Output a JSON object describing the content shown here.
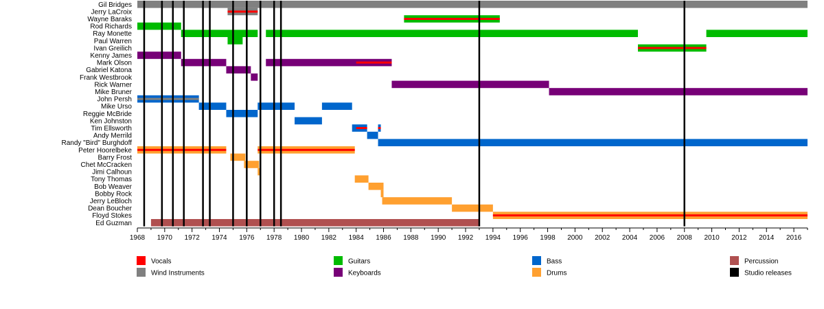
{
  "chart_data": {
    "type": "timeline",
    "xlim": [
      1968,
      2017
    ],
    "x_ticks": [
      "1968",
      "1970",
      "1972",
      "1974",
      "1976",
      "1978",
      "1980",
      "1982",
      "1984",
      "1986",
      "1988",
      "1990",
      "1992",
      "1994",
      "1996",
      "1998",
      "2000",
      "2002",
      "2004",
      "2006",
      "2008",
      "2010",
      "2012",
      "2014",
      "2016"
    ],
    "colors": {
      "Vocals": "#ff0000",
      "Wind Instruments": "#808080",
      "Guitars": "#00bb00",
      "Keyboards": "#770077",
      "Bass": "#0066cc",
      "Drums": "#ffa030",
      "Percussion": "#b05050",
      "Studio releases": "#000000"
    },
    "legend": [
      {
        "label": "Vocals",
        "key": "Vocals"
      },
      {
        "label": "Guitars",
        "key": "Guitars"
      },
      {
        "label": "Bass",
        "key": "Bass"
      },
      {
        "label": "Percussion",
        "key": "Percussion"
      },
      {
        "label": "Wind Instruments",
        "key": "Wind Instruments"
      },
      {
        "label": "Keyboards",
        "key": "Keyboards"
      },
      {
        "label": "Drums",
        "key": "Drums"
      },
      {
        "label": "Studio releases",
        "key": "Studio releases"
      }
    ],
    "studio_releases": [
      1968.5,
      1969.8,
      1970.6,
      1971.4,
      1972.8,
      1973.3,
      1975.0,
      1976.0,
      1977.0,
      1978.0,
      1978.5,
      1993.0,
      2008.0
    ],
    "members": [
      {
        "name": "Gil Bridges",
        "bars": [
          {
            "start": 1968,
            "end": 2017,
            "role": "Wind Instruments"
          }
        ],
        "vocals": []
      },
      {
        "name": "Jerry LaCroix",
        "bars": [
          {
            "start": 1974.6,
            "end": 1976.8,
            "role": "Wind Instruments"
          }
        ],
        "vocals": [
          {
            "start": 1974.6,
            "end": 1976.8
          }
        ]
      },
      {
        "name": "Wayne Baraks",
        "bars": [
          {
            "start": 1987.5,
            "end": 1994.5,
            "role": "Guitars"
          }
        ],
        "vocals": [
          {
            "start": 1987.5,
            "end": 1994.5
          }
        ]
      },
      {
        "name": "Rod Richards",
        "bars": [
          {
            "start": 1968,
            "end": 1971.2,
            "role": "Guitars"
          }
        ],
        "vocals": []
      },
      {
        "name": "Ray Monette",
        "bars": [
          {
            "start": 1971.2,
            "end": 1976.8,
            "role": "Guitars"
          },
          {
            "start": 1977.4,
            "end": 2004.6,
            "role": "Guitars"
          },
          {
            "start": 2009.6,
            "end": 2017,
            "role": "Guitars"
          }
        ],
        "vocals": []
      },
      {
        "name": "Paul Warren",
        "bars": [
          {
            "start": 1974.6,
            "end": 1975.7,
            "role": "Guitars"
          }
        ],
        "vocals": []
      },
      {
        "name": "Ivan Greilich",
        "bars": [
          {
            "start": 2004.6,
            "end": 2009.6,
            "role": "Guitars"
          }
        ],
        "vocals": [
          {
            "start": 2004.6,
            "end": 2009.6
          }
        ]
      },
      {
        "name": "Kenny James",
        "bars": [
          {
            "start": 1968,
            "end": 1971.2,
            "role": "Keyboards"
          }
        ],
        "vocals": []
      },
      {
        "name": "Mark Olson",
        "bars": [
          {
            "start": 1971.2,
            "end": 1974.5,
            "role": "Keyboards"
          },
          {
            "start": 1977.4,
            "end": 1986.6,
            "role": "Keyboards"
          }
        ],
        "vocals": [
          {
            "start": 1984,
            "end": 1986.6
          }
        ]
      },
      {
        "name": "Gabriel Katona",
        "bars": [
          {
            "start": 1974.5,
            "end": 1976.3,
            "role": "Keyboards"
          }
        ],
        "vocals": []
      },
      {
        "name": "Frank Westbrook",
        "bars": [
          {
            "start": 1976.3,
            "end": 1976.8,
            "role": "Keyboards"
          }
        ],
        "vocals": []
      },
      {
        "name": "Rick Warner",
        "bars": [
          {
            "start": 1986.6,
            "end": 1998.1,
            "role": "Keyboards"
          }
        ],
        "vocals": []
      },
      {
        "name": "Mike Bruner",
        "bars": [
          {
            "start": 1998.1,
            "end": 2017,
            "role": "Keyboards"
          }
        ],
        "vocals": []
      },
      {
        "name": "John Persh",
        "bars": [
          {
            "start": 1968,
            "end": 1972.5,
            "role": "Bass"
          }
        ],
        "vocals": [],
        "wind_overlay": [
          {
            "start": 1968,
            "end": 1972.5
          }
        ]
      },
      {
        "name": "Mike Urso",
        "bars": [
          {
            "start": 1972.5,
            "end": 1974.5,
            "role": "Bass"
          },
          {
            "start": 1976.8,
            "end": 1979.5,
            "role": "Bass"
          },
          {
            "start": 1981.5,
            "end": 1983.7,
            "role": "Bass"
          }
        ],
        "vocals": []
      },
      {
        "name": "Reggie McBride",
        "bars": [
          {
            "start": 1974.5,
            "end": 1976.8,
            "role": "Bass"
          }
        ],
        "vocals": []
      },
      {
        "name": "Ken Johnston",
        "bars": [
          {
            "start": 1979.5,
            "end": 1981.5,
            "role": "Bass"
          }
        ],
        "vocals": []
      },
      {
        "name": "Tim Ellsworth",
        "bars": [
          {
            "start": 1983.7,
            "end": 1984.8,
            "role": "Bass"
          },
          {
            "start": 1985.6,
            "end": 1985.8,
            "role": "Bass"
          }
        ],
        "vocals": [
          {
            "start": 1984,
            "end": 1984.8
          },
          {
            "start": 1985.6,
            "end": 1985.8
          }
        ]
      },
      {
        "name": "Andy Merrild",
        "bars": [
          {
            "start": 1984.8,
            "end": 1985.6,
            "role": "Bass"
          }
        ],
        "vocals": []
      },
      {
        "name": "Randy \"Bird\" Burghdoff",
        "bars": [
          {
            "start": 1985.6,
            "end": 2017,
            "role": "Bass"
          }
        ],
        "vocals": []
      },
      {
        "name": "Peter Hoorelbeke",
        "bars": [
          {
            "start": 1968,
            "end": 1974.5,
            "role": "Drums"
          },
          {
            "start": 1976.8,
            "end": 1983.9,
            "role": "Drums"
          }
        ],
        "vocals": [
          {
            "start": 1968,
            "end": 1974.5
          },
          {
            "start": 1976.8,
            "end": 1983.9
          }
        ]
      },
      {
        "name": "Barry Frost",
        "bars": [
          {
            "start": 1974.8,
            "end": 1975.9,
            "role": "Drums"
          }
        ],
        "vocals": []
      },
      {
        "name": "Chet McCracken",
        "bars": [
          {
            "start": 1975.8,
            "end": 1976.9,
            "role": "Drums"
          }
        ],
        "vocals": []
      },
      {
        "name": "Jimi Calhoun",
        "bars": [
          {
            "start": 1976.8,
            "end": 1977.0,
            "role": "Drums"
          }
        ],
        "vocals": []
      },
      {
        "name": "Tony Thomas",
        "bars": [
          {
            "start": 1983.9,
            "end": 1984.9,
            "role": "Drums"
          }
        ],
        "vocals": []
      },
      {
        "name": "Bob Weaver",
        "bars": [
          {
            "start": 1984.9,
            "end": 1986.0,
            "role": "Drums"
          }
        ],
        "vocals": []
      },
      {
        "name": "Bobby Rock",
        "bars": [
          {
            "start": 1985.8,
            "end": 1986.0,
            "role": "Drums"
          }
        ],
        "vocals": []
      },
      {
        "name": "Jerry LeBloch",
        "bars": [
          {
            "start": 1985.9,
            "end": 1991.0,
            "role": "Drums"
          }
        ],
        "vocals": []
      },
      {
        "name": "Dean Boucher",
        "bars": [
          {
            "start": 1991.0,
            "end": 1994.0,
            "role": "Drums"
          }
        ],
        "vocals": []
      },
      {
        "name": "Floyd Stokes",
        "bars": [
          {
            "start": 1994.0,
            "end": 2017,
            "role": "Drums"
          }
        ],
        "vocals": [
          {
            "start": 1994.0,
            "end": 2017
          }
        ]
      },
      {
        "name": "Ed Guzman",
        "bars": [
          {
            "start": 1969.0,
            "end": 1993.0,
            "role": "Percussion"
          }
        ],
        "vocals": []
      }
    ]
  }
}
